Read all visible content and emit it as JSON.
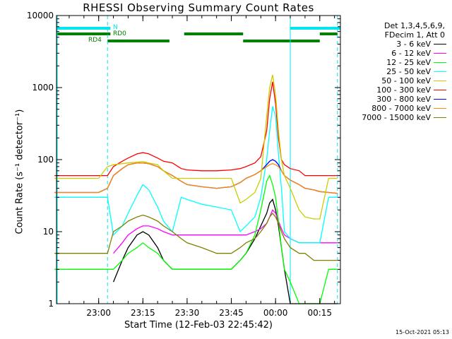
{
  "chart_data": {
    "type": "line",
    "title": "RHESSI Observing Summary Count Rates",
    "xlabel": "Start Time (12-Feb-03 22:45:42)",
    "ylabel": "Count Rate (s⁻¹ detector⁻¹)",
    "yscale": "log",
    "ylim": [
      1,
      10000
    ],
    "xlim": [
      "22:45:42",
      "00:22:00"
    ],
    "x_ticks": [
      "23:00",
      "23:15",
      "23:30",
      "23:45",
      "00:00",
      "00:15"
    ],
    "y_ticks": [
      "1",
      "10",
      "100",
      "1000",
      "10000"
    ],
    "legend_position": "right",
    "legend_header": [
      "Det 1,3,4,5,6,9,",
      "FDecim 1, Att 0"
    ],
    "footer": "15-Oct-2021 05:13",
    "status_bars": [
      {
        "label": "N",
        "color": "#00e5ee",
        "intervals": [
          [
            "22:45",
            "23:04"
          ],
          [
            "00:05",
            "00:22"
          ]
        ]
      },
      {
        "label": "RD0",
        "color": "#008000",
        "intervals": [
          [
            "22:45",
            "23:04"
          ],
          [
            "23:29",
            "23:49"
          ],
          [
            "00:15",
            "00:21"
          ]
        ]
      },
      {
        "label": "RD4",
        "color": "#008000",
        "intervals": [
          [
            "23:03",
            "23:24"
          ],
          [
            "23:49",
            "00:15"
          ]
        ]
      }
    ],
    "vlines": [
      {
        "x": "22:45",
        "color": "#00e5ee",
        "style": "solid"
      },
      {
        "x": "23:03",
        "color": "#00e5ee",
        "style": "dashed"
      },
      {
        "x": "00:05",
        "color": "#00e5ee",
        "style": "solid"
      },
      {
        "x": "00:21",
        "color": "#00e5ee",
        "style": "dashed"
      }
    ],
    "x": [
      "22:45",
      "22:50",
      "22:55",
      "23:00",
      "23:03",
      "23:05",
      "23:08",
      "23:10",
      "23:13",
      "23:15",
      "23:17",
      "23:20",
      "23:22",
      "23:25",
      "23:28",
      "23:30",
      "23:35",
      "23:40",
      "23:45",
      "23:48",
      "23:50",
      "23:53",
      "23:55",
      "23:57",
      "23:58",
      "23:59",
      "00:00",
      "00:01",
      "00:02",
      "00:03",
      "00:05",
      "00:08",
      "00:10",
      "00:13",
      "00:15",
      "00:18",
      "00:21"
    ],
    "series": [
      {
        "name": "3 - 6 keV",
        "color": "#000000",
        "values": [
          null,
          null,
          null,
          null,
          null,
          2,
          4,
          6,
          9,
          10,
          9,
          6,
          4,
          3,
          3,
          3,
          3,
          3,
          3,
          4,
          5,
          8,
          12,
          18,
          25,
          28,
          20,
          12,
          6,
          3,
          1,
          1,
          1,
          1,
          1,
          1,
          1
        ]
      },
      {
        "name": "6 - 12 keV",
        "color": "#ff00ff",
        "values": [
          null,
          null,
          null,
          null,
          null,
          5,
          7,
          9,
          11,
          12,
          12,
          11,
          10,
          9,
          9,
          9,
          9,
          9,
          9,
          9,
          9,
          10,
          11,
          13,
          16,
          20,
          18,
          14,
          11,
          9,
          8,
          7,
          7,
          7,
          7,
          7,
          7
        ]
      },
      {
        "name": "12 - 25 keV",
        "color": "#00ff00",
        "values": [
          3,
          3,
          3,
          3,
          3,
          3,
          4,
          5,
          6,
          7,
          6,
          5,
          4,
          3,
          3,
          3,
          3,
          3,
          3,
          4,
          5,
          9,
          20,
          50,
          60,
          45,
          30,
          14,
          6,
          3,
          2,
          1,
          1,
          1,
          1,
          3,
          3
        ]
      },
      {
        "name": "25 - 50 keV",
        "color": "#00ffff",
        "values": [
          30,
          30,
          30,
          30,
          30,
          9,
          12,
          18,
          32,
          45,
          38,
          22,
          14,
          10,
          30,
          28,
          24,
          22,
          20,
          10,
          12,
          16,
          30,
          100,
          250,
          550,
          400,
          120,
          40,
          10,
          8,
          7,
          7,
          7,
          7,
          30,
          30
        ]
      },
      {
        "name": "50 - 100 keV",
        "color": "#00ff00",
        "values": [
          null,
          null,
          null,
          null,
          null,
          null,
          null,
          null,
          null,
          null,
          null,
          null,
          null,
          null,
          null,
          null,
          null,
          null,
          null,
          null,
          null,
          null,
          null,
          null,
          null,
          null,
          null,
          null,
          null,
          null,
          null,
          null,
          null,
          null,
          null,
          null,
          null
        ]
      },
      {
        "name": "100 - 300 keV",
        "color": "#ff0000",
        "values": [
          60,
          60,
          60,
          60,
          60,
          80,
          95,
          105,
          120,
          125,
          120,
          105,
          95,
          90,
          75,
          72,
          70,
          70,
          72,
          75,
          80,
          90,
          110,
          250,
          700,
          1200,
          600,
          200,
          100,
          85,
          75,
          70,
          60,
          60,
          60,
          60,
          60
        ]
      },
      {
        "name": "300 - 800 keV",
        "color": "#0000ff",
        "values": [
          35,
          35,
          35,
          35,
          40,
          60,
          75,
          85,
          90,
          90,
          88,
          80,
          70,
          60,
          50,
          45,
          42,
          40,
          42,
          48,
          55,
          62,
          70,
          85,
          95,
          100,
          95,
          85,
          70,
          60,
          52,
          45,
          40,
          38,
          36,
          35,
          34
        ]
      },
      {
        "name": "800 - 7000 keV",
        "color": "#ff8800",
        "values": [
          35,
          35,
          35,
          35,
          40,
          60,
          75,
          85,
          90,
          90,
          88,
          80,
          70,
          60,
          50,
          45,
          42,
          40,
          42,
          48,
          55,
          62,
          70,
          80,
          85,
          88,
          85,
          80,
          70,
          60,
          52,
          45,
          40,
          38,
          36,
          35,
          34
        ]
      },
      {
        "name": "7000 - 15000 keV",
        "color": "#808000",
        "values": [
          5,
          5,
          5,
          5,
          5,
          10,
          12,
          14,
          16,
          17,
          16,
          14,
          12,
          10,
          8,
          7,
          6,
          5,
          5,
          6,
          7,
          8,
          10,
          13,
          16,
          18,
          16,
          13,
          10,
          8,
          6,
          5,
          5,
          4,
          4,
          4,
          4
        ]
      }
    ],
    "band_50_100": {
      "name": "50 - 100 keV",
      "color": "#cccc00",
      "values": [
        55,
        55,
        55,
        55,
        80,
        85,
        88,
        90,
        92,
        94,
        90,
        85,
        70,
        55,
        55,
        55,
        55,
        55,
        55,
        25,
        28,
        35,
        55,
        400,
        1000,
        1500,
        800,
        250,
        100,
        60,
        40,
        20,
        16,
        15,
        15,
        55,
        55
      ]
    }
  },
  "legend_items": [
    {
      "label": "3 - 6 keV",
      "color": "#000000"
    },
    {
      "label": "6 - 12 keV",
      "color": "#ff00ff"
    },
    {
      "label": "12 - 25 keV",
      "color": "#00ff00"
    },
    {
      "label": "25 - 50 keV",
      "color": "#00ffff"
    },
    {
      "label": "50 - 100 keV",
      "color": "#cccc00"
    },
    {
      "label": "100 - 300 keV",
      "color": "#ff0000"
    },
    {
      "label": "300 - 800 keV",
      "color": "#0000ff"
    },
    {
      "label": "800 - 7000 keV",
      "color": "#ff8800"
    },
    {
      "label": "7000 - 15000 keV",
      "color": "#808000"
    }
  ]
}
